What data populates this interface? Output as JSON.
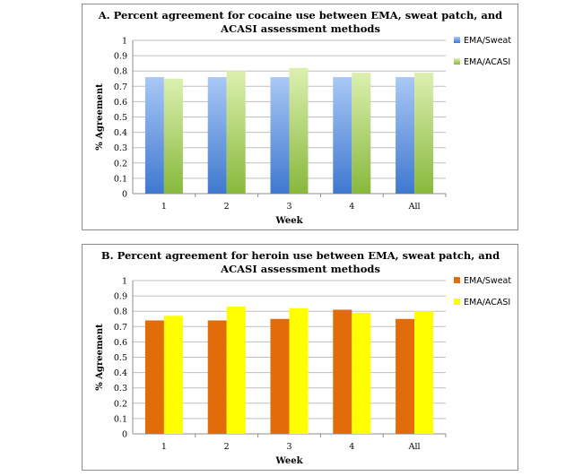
{
  "chart_data": [
    {
      "type": "bar",
      "title_lines": [
        "A. Percent agreement for cocaine use between EMA, sweat patch, and",
        "ACASI assessment methods"
      ],
      "categories": [
        "1",
        "2",
        "3",
        "4",
        "All"
      ],
      "series": [
        {
          "name": "EMA/Sweat",
          "values": [
            0.76,
            0.76,
            0.76,
            0.76,
            0.76
          ]
        },
        {
          "name": "EMA/ACASI",
          "values": [
            0.75,
            0.8,
            0.82,
            0.79,
            0.79
          ]
        }
      ],
      "xlabel": "Week",
      "ylabel": "% Agreement",
      "ylim": [
        0,
        1
      ],
      "yticks": [
        "0",
        "0.1",
        "0.2",
        "0.3",
        "0.4",
        "0.5",
        "0.6",
        "0.7",
        "0.8",
        "0.9",
        "1"
      ],
      "grid": true,
      "legend_position": "right",
      "colors": {
        "series1_top": "#a9c8f5",
        "series1_bottom": "#3f78cf",
        "series2_top": "#dcf0b0",
        "series2_bottom": "#88b83c"
      }
    },
    {
      "type": "bar",
      "title_lines": [
        "B. Percent agreement for heroin use between EMA, sweat patch, and",
        "ACASI assessment methods"
      ],
      "categories": [
        "1",
        "2",
        "3",
        "4",
        "All"
      ],
      "series": [
        {
          "name": "EMA/Sweat",
          "values": [
            0.74,
            0.74,
            0.75,
            0.81,
            0.75
          ]
        },
        {
          "name": "EMA/ACASI",
          "values": [
            0.77,
            0.83,
            0.82,
            0.79,
            0.8
          ]
        }
      ],
      "xlabel": "Week",
      "ylabel": "% Agreement",
      "ylim": [
        0,
        1
      ],
      "yticks": [
        "0",
        "0.1",
        "0.2",
        "0.3",
        "0.4",
        "0.5",
        "0.6",
        "0.7",
        "0.8",
        "0.9",
        "1"
      ],
      "grid": true,
      "legend_position": "right",
      "colors": {
        "series1": "#e36c0a",
        "series2": "#ffff00"
      }
    }
  ]
}
